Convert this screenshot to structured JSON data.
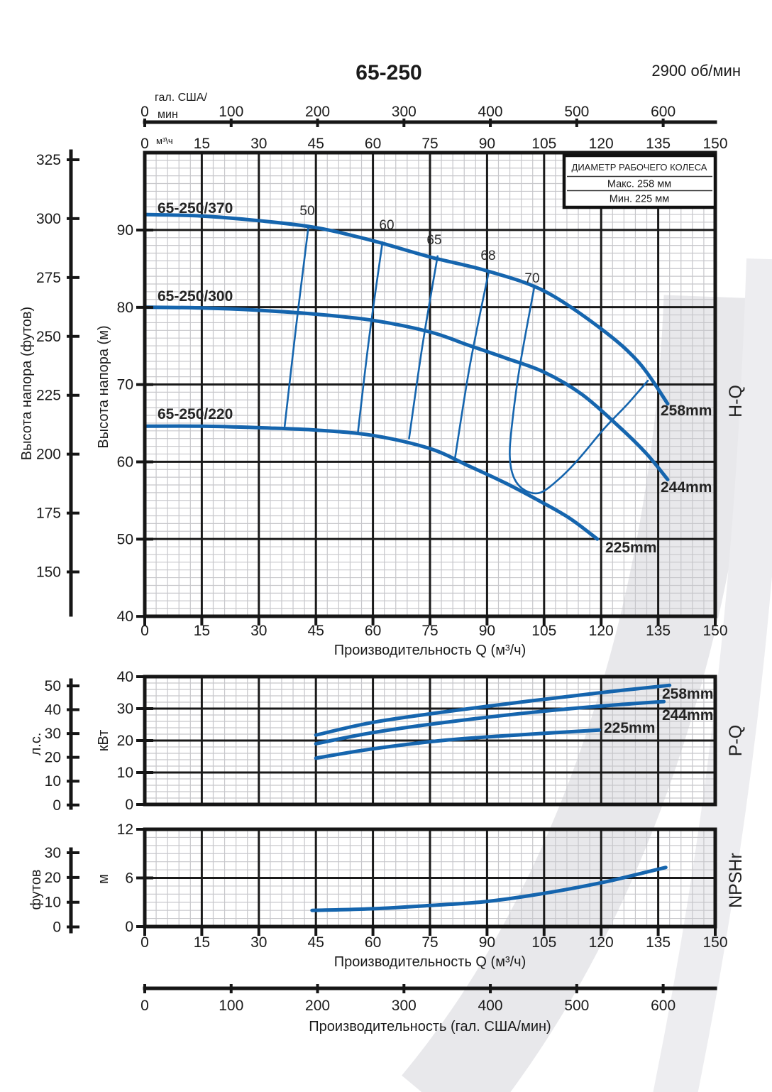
{
  "header": {
    "model": "65-250",
    "speed": "2900 об/мин"
  },
  "legend": {
    "title": "ДИАМЕТР РАБОЧЕГО КОЛЕСА",
    "max": "Макс. 258 мм",
    "min": "Мин. 225 мм"
  },
  "axis_labels": {
    "gpm_unit_1": "гал. США/",
    "gpm_unit_2": "мин",
    "m3h_unit": "м³\\ч",
    "head_ft": "Высота напора (футов)",
    "head_m": "Высота напора (м)",
    "power_hp": "л.с.",
    "power_kw": "кВт",
    "npsh_ft": "футов",
    "npsh_m": "м",
    "q_title_main": "Производительность Q (м³/ч)",
    "q_title_npsh": "Производительность Q (м³/ч)",
    "q_title_gpm": "Производительность (гал. США/мин)",
    "hq": "H-Q",
    "pq": "P-Q",
    "npshr": "NPSHr"
  },
  "ticks": {
    "gpm": [
      "0",
      "100",
      "200",
      "300",
      "400",
      "500",
      "600"
    ],
    "q_m3h": [
      "0",
      "15",
      "30",
      "45",
      "60",
      "75",
      "90",
      "105",
      "120",
      "135",
      "150"
    ],
    "head_ft": [
      "325",
      "300",
      "275",
      "250",
      "225",
      "200",
      "175",
      "150"
    ],
    "head_m": [
      "90",
      "80",
      "70",
      "60",
      "50",
      "40"
    ],
    "hp": [
      "50",
      "40",
      "30",
      "20",
      "10",
      "0"
    ],
    "kw": [
      "40",
      "30",
      "20",
      "10",
      "0"
    ],
    "npsh_ft": [
      "30",
      "20",
      "10",
      "0"
    ],
    "npsh_m": [
      "12",
      "6",
      "0"
    ]
  },
  "curve_labels": {
    "c370": "65-250/370",
    "c300": "65-250/300",
    "c220": "65-250/220",
    "hq258": "258mm",
    "hq244": "244mm",
    "hq225": "225mm",
    "eff50": "50",
    "eff60": "60",
    "eff65": "65",
    "eff68": "68",
    "eff70": "70",
    "pq258": "258mm",
    "pq244": "244mm",
    "pq225": "225mm"
  },
  "chart_data": [
    {
      "id": "H-Q",
      "type": "line",
      "title": "H-Q",
      "xlabel": "Производительность Q (м³/ч)",
      "ylabel": "Высота напора (м)",
      "ylabel_secondary": "Высота напора (футов)",
      "xlim": [
        0,
        150
      ],
      "ylim": [
        40,
        100
      ],
      "grid": "on",
      "series": [
        {
          "name": "65-250/370 258mm",
          "points": [
            [
              0,
              92
            ],
            [
              15,
              91.8
            ],
            [
              30,
              91.2
            ],
            [
              45,
              90.3
            ],
            [
              60,
              88.6
            ],
            [
              75,
              86.5
            ],
            [
              90,
              84.7
            ],
            [
              105,
              82.1
            ],
            [
              120,
              77.2
            ],
            [
              130,
              72.8
            ],
            [
              137.5,
              67.5
            ]
          ]
        },
        {
          "name": "65-250/300 244mm",
          "points": [
            [
              0,
              80
            ],
            [
              15,
              79.9
            ],
            [
              30,
              79.6
            ],
            [
              45,
              79.1
            ],
            [
              60,
              78.3
            ],
            [
              75,
              76.8
            ],
            [
              85,
              75.1
            ],
            [
              95,
              73.4
            ],
            [
              105,
              71.6
            ],
            [
              115,
              68.7
            ],
            [
              125,
              64.4
            ],
            [
              132,
              61
            ],
            [
              137.5,
              57.7
            ]
          ]
        },
        {
          "name": "65-250/220 225mm",
          "points": [
            [
              0,
              64.6
            ],
            [
              15,
              64.6
            ],
            [
              30,
              64.4
            ],
            [
              45,
              64.1
            ],
            [
              60,
              63.4
            ],
            [
              75,
              61.7
            ],
            [
              85,
              59.5
            ],
            [
              95,
              57.2
            ],
            [
              105,
              54.6
            ],
            [
              112,
              52.6
            ],
            [
              119,
              50
            ]
          ]
        }
      ],
      "efficiency_lines": [
        {
          "label": "50",
          "points": [
            [
              43,
              90.3
            ],
            [
              39.8,
              77.5
            ],
            [
              36.8,
              64.6
            ]
          ]
        },
        {
          "label": "60",
          "points": [
            [
              62.5,
              88.4
            ],
            [
              59,
              76
            ],
            [
              56,
              63.6
            ]
          ]
        },
        {
          "label": "65",
          "points": [
            [
              77,
              86.6
            ],
            [
              73,
              75
            ],
            [
              69.5,
              63
            ]
          ]
        },
        {
          "label": "68",
          "points": [
            [
              90.5,
              84.7
            ],
            [
              85.5,
              72.5
            ],
            [
              81.5,
              60.2
            ]
          ]
        },
        {
          "label": "70",
          "points": [
            [
              102.5,
              82.8
            ],
            [
              98.5,
              72
            ],
            [
              96.5,
              64.5
            ],
            [
              96,
              60.5
            ],
            [
              97.2,
              57.8
            ],
            [
              100,
              56.3
            ],
            [
              104,
              56
            ],
            [
              109,
              57.8
            ],
            [
              114,
              60.3
            ],
            [
              121,
              64.4
            ],
            [
              127,
              67.5
            ],
            [
              132.3,
              70.5
            ]
          ]
        }
      ]
    },
    {
      "id": "P-Q",
      "type": "line",
      "title": "P-Q",
      "ylabel": "кВт",
      "ylabel_secondary": "л.с.",
      "xlim": [
        0,
        150
      ],
      "ylim": [
        0,
        40
      ],
      "grid": "on",
      "series": [
        {
          "name": "258mm",
          "points": [
            [
              45,
              21.7
            ],
            [
              60,
              25.7
            ],
            [
              79,
              29
            ],
            [
              100,
              32.2
            ],
            [
              120,
              35
            ],
            [
              138,
              37.3
            ]
          ]
        },
        {
          "name": "244mm",
          "points": [
            [
              45,
              19
            ],
            [
              60,
              22.5
            ],
            [
              79,
              25.7
            ],
            [
              100,
              28.6
            ],
            [
              120,
              30.8
            ],
            [
              136.5,
              32.2
            ]
          ]
        },
        {
          "name": "225mm",
          "points": [
            [
              45,
              14.5
            ],
            [
              60,
              17.4
            ],
            [
              79,
              20.1
            ],
            [
              100,
              21.9
            ],
            [
              119.5,
              23.3
            ]
          ]
        }
      ]
    },
    {
      "id": "NPSHr",
      "type": "line",
      "title": "NPSHr",
      "ylabel": "м",
      "ylabel_secondary": "футов",
      "xlim": [
        0,
        150
      ],
      "ylim": [
        0,
        12
      ],
      "grid": "on",
      "series": [
        {
          "name": "NPSHr",
          "points": [
            [
              44,
              2
            ],
            [
              60,
              2.2
            ],
            [
              75,
              2.6
            ],
            [
              90,
              3.1
            ],
            [
              105,
              4.1
            ],
            [
              120,
              5.4
            ],
            [
              130,
              6.5
            ],
            [
              137,
              7.3
            ]
          ]
        }
      ]
    }
  ]
}
